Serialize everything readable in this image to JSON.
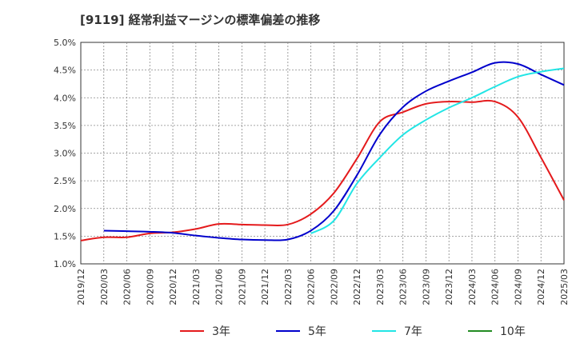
{
  "chart_data": {
    "type": "line",
    "title": "[9119]  経常利益マージンの標準偏差の推移",
    "xlabel": "",
    "ylabel": "",
    "x_ticks": [
      "2019/12",
      "2020/03",
      "2020/06",
      "2020/09",
      "2020/12",
      "2021/03",
      "2021/06",
      "2021/09",
      "2021/12",
      "2022/03",
      "2022/06",
      "2022/09",
      "2022/12",
      "2023/03",
      "2023/06",
      "2023/09",
      "2023/12",
      "2024/03",
      "2024/06",
      "2024/09",
      "2024/12",
      "2025/03"
    ],
    "y_ticks": [
      "1.0%",
      "1.5%",
      "2.0%",
      "2.5%",
      "3.0%",
      "3.5%",
      "4.0%",
      "4.5%",
      "5.0%"
    ],
    "ylim": [
      1.0,
      5.0
    ],
    "grid": true,
    "legend_position": "bottom",
    "series": [
      {
        "name": "3年",
        "color": "#e41a1c",
        "values": [
          1.42,
          1.48,
          1.48,
          1.55,
          1.57,
          1.63,
          1.72,
          1.71,
          1.7,
          1.71,
          1.9,
          2.28,
          2.9,
          3.57,
          3.74,
          3.89,
          3.93,
          3.92,
          3.93,
          3.65,
          2.92,
          2.15
        ]
      },
      {
        "name": "5年",
        "color": "#0000cc",
        "values": [
          null,
          1.6,
          1.59,
          1.58,
          1.56,
          1.51,
          1.47,
          1.44,
          1.43,
          1.44,
          1.6,
          1.96,
          2.6,
          3.34,
          3.83,
          4.12,
          4.3,
          4.46,
          4.63,
          4.61,
          4.42,
          4.23
        ]
      },
      {
        "name": "7年",
        "color": "#22e5e5",
        "values": [
          null,
          null,
          null,
          null,
          null,
          null,
          null,
          null,
          null,
          null,
          1.55,
          1.78,
          2.45,
          2.92,
          3.33,
          3.6,
          3.82,
          4.0,
          4.2,
          4.38,
          4.47,
          4.53
        ]
      },
      {
        "name": "10年",
        "color": "#228b22",
        "values": [
          null,
          null,
          null,
          null,
          null,
          null,
          null,
          null,
          null,
          null,
          null,
          null,
          null,
          null,
          null,
          null,
          null,
          null,
          null,
          null,
          null,
          null
        ]
      }
    ]
  }
}
